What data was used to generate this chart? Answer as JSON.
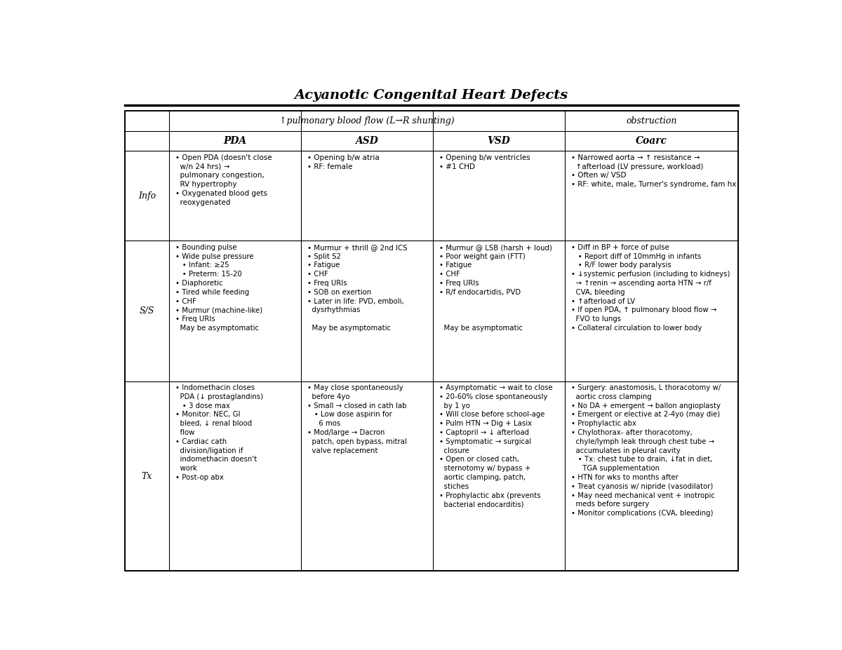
{
  "title": "Acyanotic Congenital Heart Defects",
  "bg_color": "#ffffff",
  "text_color": "#000000",
  "col_header1": "↑pulmonary blood flow (L→R shunting)",
  "col_header2": "obstruction",
  "sub_headers": [
    "PDA",
    "ASD",
    "VSD",
    "Coarc"
  ],
  "row_labels": [
    "Info",
    "S/S",
    "Tx"
  ],
  "pda_info": "• Open PDA (doesn't close\n  w/n 24 hrs) →\n  pulmonary congestion,\n  RV hypertrophy\n• Oxygenated blood gets\n  reoxygenated",
  "asd_info": "• Opening b/w atria\n• RF: female",
  "vsd_info": "• Opening b/w ventricles\n• #1 CHD",
  "coarc_info": "• Narrowed aorta → ↑ resistance →\n  ↑afterload (LV pressure, workload)\n• Often w/ VSD\n• RF: white, male, Turner's syndrome, fam hx",
  "pda_ss": "• Bounding pulse\n• Wide pulse pressure\n   • Infant: ≥25\n   • Preterm: 15-20\n• Diaphoretic\n• Tired while feeding\n• CHF\n• Murmur (machine-like)\n• Freq URIs\n  May be asymptomatic",
  "asd_ss": "• Murmur + thrill @ 2nd ICS\n• Split S2\n• Fatigue\n• CHF\n• Freq URIs\n• SOB on exertion\n• Later in life: PVD, emboli,\n  dysrhythmias\n\n  May be asymptomatic",
  "vsd_ss": "• Murmur @ LSB (harsh + loud)\n• Poor weight gain (FTT)\n• Fatigue\n• CHF\n• Freq URIs\n• R/f endocartidis, PVD\n\n\n\n  May be asymptomatic",
  "coarc_ss": "• Diff in BP + force of pulse\n   • Report diff of 10mmHg in infants\n   • R/F lower body paralysis\n• ↓systemic perfusion (including to kidneys)\n  → ↑renin → ascending aorta HTN → r/f\n  CVA, bleeding\n• ↑afterload of LV\n• If open PDA, ↑ pulmonary blood flow →\n  FVO to lungs\n• Collateral circulation to lower body",
  "pda_tx": "• Indomethacin closes\n  PDA (↓ prostaglandins)\n   • 3 dose max\n• Monitor: NEC, GI\n  bleed, ↓ renal blood\n  flow\n• Cardiac cath\n  division/ligation if\n  indomethacin doesn't\n  work\n• Post-op abx",
  "asd_tx": "• May close spontaneously\n  before 4yo\n• Small → closed in cath lab\n   • Low dose aspirin for\n     6 mos\n• Mod/large → Dacron\n  patch, open bypass, mitral\n  valve replacement",
  "vsd_tx": "• Asymptomatic → wait to close\n• 20-60% close spontaneously\n  by 1 yo\n• Will close before school-age\n• Pulm HTN → Dig + Lasix\n• Captopril → ↓ afterload\n• Symptomatic → surgical\n  closure\n• Open or closed cath,\n  sternotomy w/ bypass +\n  aortic clamping, patch,\n  stiches\n• Prophylactic abx (prevents\n  bacterial endocarditis)",
  "coarc_tx": "• Surgery: anastomosis, L thoracotomy w/\n  aortic cross clamping\n• No DA + emergent → ballon angioplasty\n• Emergent or elective at 2-4yo (may die)\n• Prophylactic abx\n• Chylothorax- after thoracotomy,\n  chyle/lymph leak through chest tube →\n  accumulates in pleural cavity\n   • Tx: chest tube to drain, ↓fat in diet,\n     TGA supplementation\n• HTN for wks to months after\n• Treat cyanosis w/ nipride (vasodilator)\n• May need mechanical vent + inotropic\n  meds before surgery\n• Monitor complications (CVA, bleeding)"
}
